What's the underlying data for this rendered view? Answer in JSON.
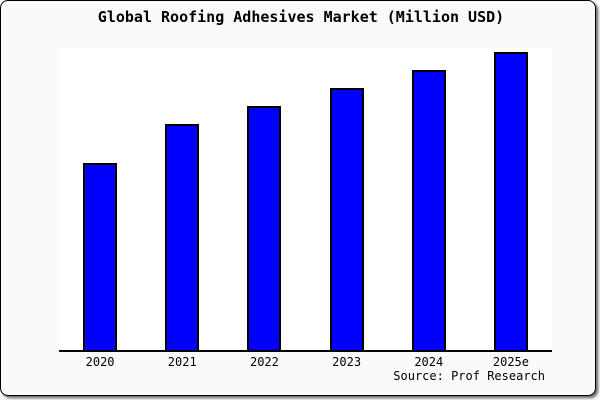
{
  "chart_data": {
    "type": "bar",
    "title": "Global Roofing Adhesives Market (Million USD)",
    "categories": [
      "2020",
      "2021",
      "2022",
      "2023",
      "2024",
      "2025e"
    ],
    "values": [
      63,
      76,
      82,
      88,
      94,
      100
    ],
    "ylim": [
      0,
      101.5
    ],
    "xlabel": "",
    "ylabel": "",
    "grid": false,
    "legend": false,
    "y_axis_labeled": false,
    "value_note": "No y-axis scale is shown in the image; values are relative bar heights normalized so the 2025e bar = 100",
    "bar_color": "#0000ff",
    "bar_border_color": "#000000",
    "source": "Source: Prof Research",
    "colors": {
      "plot_background": "#ffffff",
      "outer_background": "#fafafa",
      "frame_border": "#000000",
      "axis": "#000000",
      "text": "#000000"
    }
  }
}
